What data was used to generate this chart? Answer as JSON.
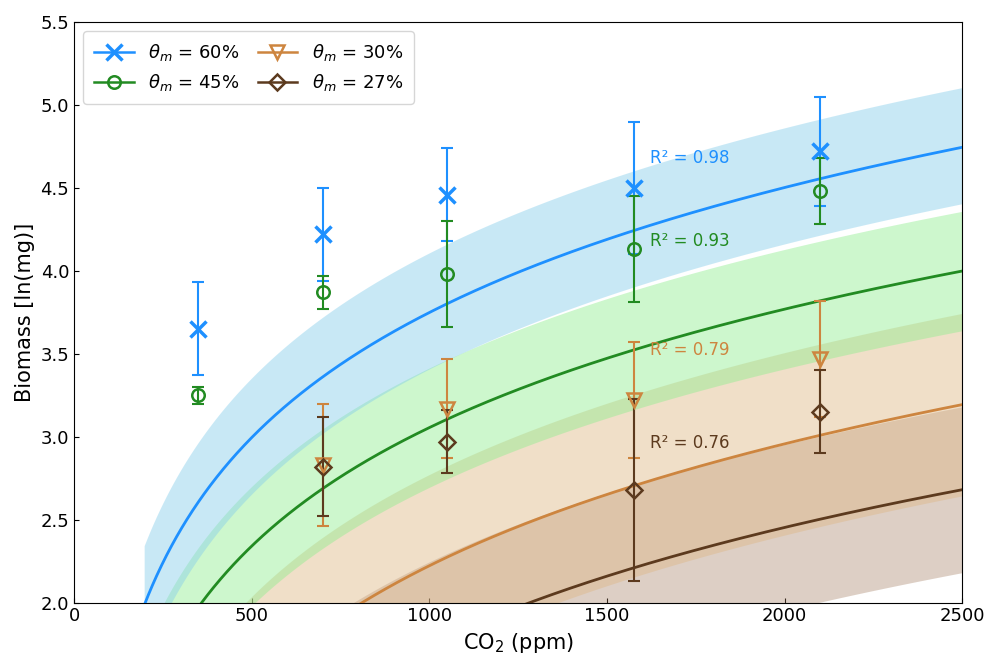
{
  "xlabel": "CO$_2$ (ppm)",
  "ylabel": "Biomass [ln(mg)]",
  "xlim": [
    100,
    2500
  ],
  "ylim": [
    2.0,
    5.5
  ],
  "xticks": [
    0,
    500,
    1000,
    1500,
    2000,
    2500
  ],
  "yticks": [
    2.0,
    2.5,
    3.0,
    3.5,
    4.0,
    4.5,
    5.0,
    5.5
  ],
  "series": [
    {
      "label": "$\\theta_m$ = 60%",
      "color": "#1E90FF",
      "fill_color": "#87CEEB",
      "fill_alpha": 0.45,
      "marker": "x",
      "marker_size": 11,
      "marker_lw": 2.5,
      "r2": 0.98,
      "r2_x": 1620,
      "r2_y": 4.68,
      "data_x": [
        350,
        700,
        1050,
        1575,
        2100
      ],
      "data_y": [
        3.65,
        4.22,
        4.46,
        4.5,
        4.72
      ],
      "data_yerr": [
        0.28,
        0.28,
        0.28,
        0.4,
        0.33
      ],
      "fit_a": -3.76,
      "fit_b": 1.087,
      "fit_a_upper": -3.4,
      "fit_b_upper": 1.087,
      "fit_a_lower": -4.1,
      "fit_b_lower": 1.087,
      "fit_xmin": 195
    },
    {
      "label": "$\\theta_m$ = 45%",
      "color": "#228B22",
      "fill_color": "#90EE90",
      "fill_alpha": 0.45,
      "marker": "o",
      "marker_size": 9,
      "marker_lw": 1.8,
      "r2": 0.93,
      "r2_x": 1620,
      "r2_y": 4.18,
      "data_x": [
        350,
        700,
        1050,
        1575,
        2100
      ],
      "data_y": [
        3.25,
        3.87,
        3.98,
        4.13,
        4.48
      ],
      "data_yerr": [
        0.05,
        0.1,
        0.32,
        0.32,
        0.2
      ],
      "fit_a": -4.06,
      "fit_b": 1.03,
      "fit_a_upper": -3.7,
      "fit_b_upper": 1.03,
      "fit_a_lower": -4.42,
      "fit_b_lower": 1.03,
      "fit_xmin": 210
    },
    {
      "label": "$\\theta_m$ = 30%",
      "color": "#CD853F",
      "fill_color": "#DEB887",
      "fill_alpha": 0.45,
      "marker": "v",
      "marker_size": 10,
      "marker_lw": 1.8,
      "r2": 0.79,
      "r2_x": 1620,
      "r2_y": 3.52,
      "data_x": [
        700,
        1050,
        1575,
        2100
      ],
      "data_y": [
        2.83,
        3.17,
        3.22,
        3.47
      ],
      "data_yerr": [
        0.37,
        0.3,
        0.35,
        0.35
      ],
      "fit_a": -5.1,
      "fit_b": 1.06,
      "fit_a_upper": -4.55,
      "fit_b_upper": 1.06,
      "fit_a_lower": -5.65,
      "fit_b_lower": 1.06,
      "fit_xmin": 210
    },
    {
      "label": "$\\theta_m$ = 27%",
      "color": "#5C3A1E",
      "fill_color": "#A0785A",
      "fill_alpha": 0.35,
      "marker": "D",
      "marker_size": 8,
      "marker_lw": 1.8,
      "r2": 0.76,
      "r2_x": 1620,
      "r2_y": 2.96,
      "data_x": [
        700,
        1050,
        1575,
        2100
      ],
      "data_y": [
        2.82,
        2.97,
        2.68,
        3.15
      ],
      "data_yerr": [
        0.3,
        0.19,
        0.55,
        0.25
      ],
      "fit_a": -5.3,
      "fit_b": 1.02,
      "fit_a_upper": -4.8,
      "fit_b_upper": 1.02,
      "fit_a_lower": -5.8,
      "fit_b_lower": 1.02,
      "fit_xmin": 215
    }
  ],
  "background_color": "#ffffff",
  "tick_fontsize": 13,
  "label_fontsize": 15,
  "legend_fontsize": 13
}
